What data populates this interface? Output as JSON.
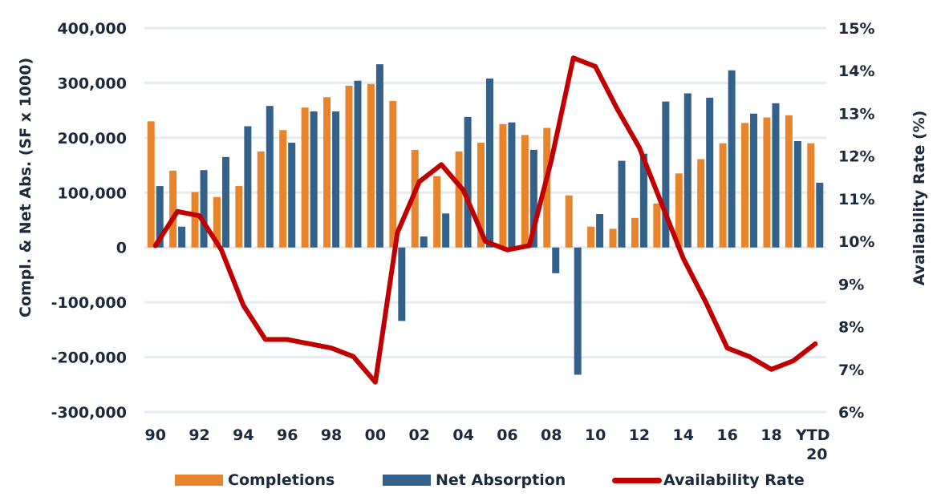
{
  "chart_data": {
    "type": "bar",
    "title": "",
    "ylabel": "Compl. & Net Abs. (SF x 1000)",
    "y2label": "Availability Rate (%)",
    "ylim": [
      -300000,
      400000
    ],
    "y2lim": [
      6,
      15
    ],
    "yticks": [
      "400,000",
      "300,000",
      "200,000",
      "100,000",
      "0",
      "-100,000",
      "-200,000",
      "-300,000"
    ],
    "ytick_values": [
      400000,
      300000,
      200000,
      100000,
      0,
      -100000,
      -200000,
      -300000
    ],
    "y2ticks": [
      "15%",
      "14%",
      "13%",
      "12%",
      "11%",
      "10%",
      "9%",
      "8%",
      "7%",
      "6%"
    ],
    "y2tick_values": [
      15,
      14,
      13,
      12,
      11,
      10,
      9,
      8,
      7,
      6
    ],
    "grid": true,
    "legend_position": "bottom",
    "categories": [
      "1990",
      "1991",
      "1992",
      "1993",
      "1994",
      "1995",
      "1996",
      "1997",
      "1998",
      "1999",
      "2000",
      "2001",
      "2002",
      "2003",
      "2004",
      "2005",
      "2006",
      "2007",
      "2008",
      "2009",
      "2010",
      "2011",
      "2012",
      "2013",
      "2014",
      "2015",
      "2016",
      "2017",
      "2018",
      "2019",
      "YTD 2020"
    ],
    "xtick_labels": [
      {
        "index": 0,
        "label": "90"
      },
      {
        "index": 2,
        "label": "92"
      },
      {
        "index": 4,
        "label": "94"
      },
      {
        "index": 6,
        "label": "96"
      },
      {
        "index": 8,
        "label": "98"
      },
      {
        "index": 10,
        "label": "00"
      },
      {
        "index": 12,
        "label": "02"
      },
      {
        "index": 14,
        "label": "04"
      },
      {
        "index": 16,
        "label": "06"
      },
      {
        "index": 18,
        "label": "08"
      },
      {
        "index": 20,
        "label": "10"
      },
      {
        "index": 22,
        "label": "12"
      },
      {
        "index": 24,
        "label": "14"
      },
      {
        "index": 26,
        "label": "16"
      },
      {
        "index": 28,
        "label": "18"
      },
      {
        "index": 30,
        "label": "YTD",
        "label2": "20"
      }
    ],
    "series": [
      {
        "name": "Completions",
        "type": "bar",
        "axis": "left",
        "color": "#e8842c",
        "values": [
          230000,
          140000,
          101000,
          92000,
          112000,
          175000,
          214000,
          255000,
          274000,
          295000,
          298000,
          267000,
          178000,
          130000,
          175000,
          191000,
          225000,
          205000,
          218000,
          95000,
          38000,
          34000,
          54000,
          80000,
          135000,
          161000,
          190000,
          227000,
          237000,
          241000,
          190000
        ]
      },
      {
        "name": "Net Absorption",
        "type": "bar",
        "axis": "left",
        "color": "#336189",
        "values": [
          112000,
          38000,
          141000,
          165000,
          221000,
          258000,
          191000,
          248000,
          248000,
          304000,
          334000,
          -134000,
          20000,
          62000,
          238000,
          308000,
          228000,
          178000,
          -47000,
          -232000,
          61000,
          158000,
          171000,
          266000,
          281000,
          273000,
          323000,
          244000,
          263000,
          194000,
          118000
        ]
      },
      {
        "name": "Availability Rate",
        "type": "line",
        "axis": "right",
        "color": "#c00000",
        "values": [
          9.9,
          10.7,
          10.6,
          9.8,
          8.5,
          7.7,
          7.7,
          7.6,
          7.5,
          7.3,
          6.7,
          10.2,
          11.4,
          11.8,
          11.2,
          10.0,
          9.8,
          9.9,
          11.9,
          14.3,
          14.1,
          13.1,
          12.2,
          10.9,
          9.6,
          8.6,
          7.5,
          7.3,
          7.0,
          7.2,
          7.6
        ]
      }
    ]
  },
  "colors": {
    "gridline": "#e6ebf0",
    "text": "#1b2a3c"
  }
}
